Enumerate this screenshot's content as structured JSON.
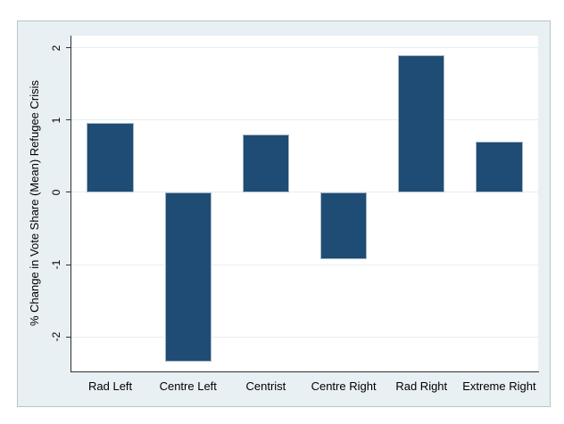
{
  "chart_data": {
    "type": "bar",
    "categories": [
      "Rad Left",
      "Centre Left",
      "Centrist",
      "Centre Right",
      "Rad Right",
      "Extreme Right"
    ],
    "values": [
      0.96,
      -2.35,
      0.8,
      -0.92,
      1.9,
      0.7
    ],
    "ylabel": "% Change in Vote Share (Mean) Refugee Crisis",
    "xlabel": "",
    "yticks": [
      2,
      1,
      0,
      -1,
      -2
    ],
    "ytick_labels": [
      "2",
      "1",
      "0",
      "-1",
      "-2"
    ],
    "ylim": [
      -2.48,
      2.17
    ],
    "grid": true,
    "legend": false,
    "bar_rel_width": 0.6
  },
  "colors": {
    "bar_fill": "#1e4c74",
    "bar_border": "#a9b7c6",
    "frame_bg": "#e9f0f4",
    "frame_border": "#bac4c6",
    "plot_bg": "#ffffff",
    "grid_line": "#e6eef1",
    "axis_line": "#303030",
    "text": "#000000"
  }
}
